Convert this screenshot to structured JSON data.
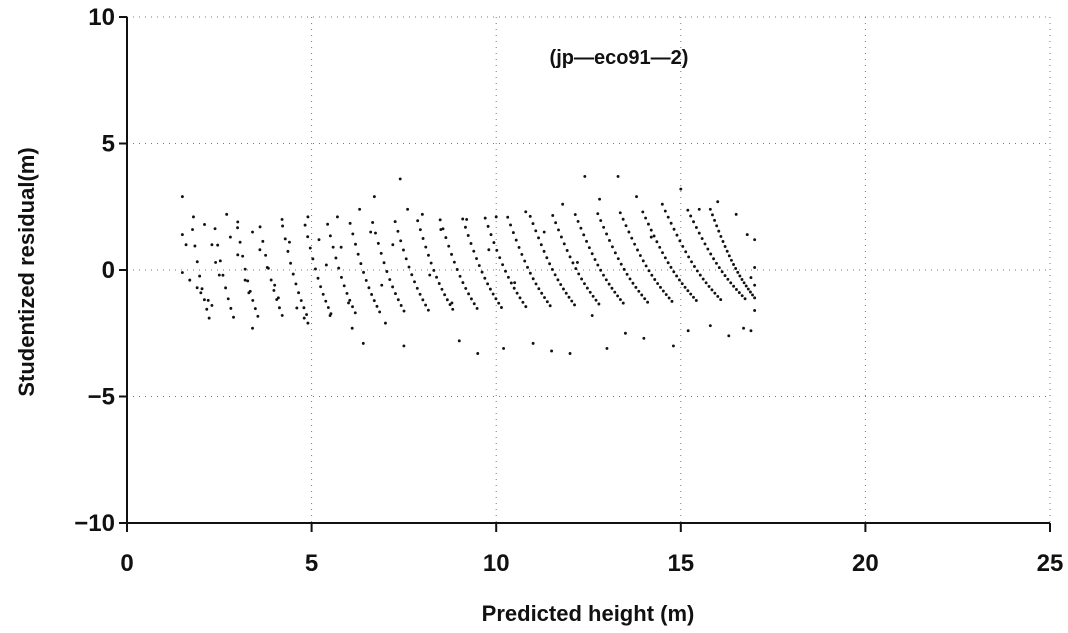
{
  "chart_data": {
    "type": "scatter",
    "title": "(jp—eco91—2)",
    "xlabel": "Predicted height (m)",
    "ylabel": "Studentized residual(m)",
    "xlim": [
      0,
      25
    ],
    "ylim": [
      -10,
      10
    ],
    "xticks": [
      0,
      5,
      10,
      15,
      20,
      25
    ],
    "yticks": [
      -10,
      -5,
      0,
      5,
      10
    ],
    "xtick_labels": [
      "0",
      "5",
      "10",
      "15",
      "20",
      "25"
    ],
    "ytick_labels": [
      "−10",
      "−5",
      "0",
      "5",
      "10"
    ],
    "grid": true,
    "grid_style": "dotted",
    "marker_color": "#111111",
    "points": [
      [
        1.5,
        2.9
      ],
      [
        1.5,
        1.4
      ],
      [
        1.6,
        1.0
      ],
      [
        1.5,
        -0.1
      ],
      [
        1.7,
        -0.4
      ],
      [
        1.9,
        -0.7
      ],
      [
        2.0,
        -0.9
      ],
      [
        2.2,
        -1.2
      ],
      [
        2.3,
        -1.4
      ],
      [
        1.8,
        2.1
      ],
      [
        2.1,
        1.8
      ],
      [
        2.3,
        1.0
      ],
      [
        2.4,
        0.3
      ],
      [
        2.5,
        -0.2
      ],
      [
        2.7,
        2.2
      ],
      [
        2.8,
        1.3
      ],
      [
        3.0,
        0.6
      ],
      [
        3.2,
        -0.4
      ],
      [
        3.3,
        -0.9
      ],
      [
        3.4,
        -2.3
      ],
      [
        3.0,
        1.9
      ],
      [
        3.4,
        1.5
      ],
      [
        3.6,
        0.8
      ],
      [
        3.8,
        0.1
      ],
      [
        4.0,
        -0.6
      ],
      [
        4.1,
        -1.1
      ],
      [
        4.2,
        2.0
      ],
      [
        4.4,
        1.1
      ],
      [
        4.6,
        -1.5
      ],
      [
        4.8,
        -1.9
      ],
      [
        4.9,
        -2.1
      ],
      [
        4.9,
        2.1
      ],
      [
        5.2,
        1.2
      ],
      [
        5.4,
        0.2
      ],
      [
        5.5,
        -1.8
      ],
      [
        5.7,
        2.1
      ],
      [
        5.8,
        0.9
      ],
      [
        6.0,
        -1.3
      ],
      [
        6.1,
        -2.3
      ],
      [
        6.3,
        2.4
      ],
      [
        6.4,
        -2.9
      ],
      [
        6.6,
        1.5
      ],
      [
        6.7,
        2.9
      ],
      [
        6.9,
        -0.6
      ],
      [
        7.0,
        -2.1
      ],
      [
        7.2,
        1.0
      ],
      [
        7.4,
        3.6
      ],
      [
        7.5,
        -3.0
      ],
      [
        7.6,
        2.4
      ],
      [
        8.0,
        2.2
      ],
      [
        8.2,
        -0.2
      ],
      [
        8.5,
        1.6
      ],
      [
        8.8,
        -1.3
      ],
      [
        9.0,
        -2.8
      ],
      [
        9.2,
        2.0
      ],
      [
        9.5,
        -3.3
      ],
      [
        9.8,
        0.8
      ],
      [
        10.0,
        2.1
      ],
      [
        10.2,
        -3.1
      ],
      [
        10.5,
        -0.5
      ],
      [
        10.8,
        2.3
      ],
      [
        11.0,
        -2.9
      ],
      [
        11.3,
        1.5
      ],
      [
        11.5,
        -3.2
      ],
      [
        11.8,
        2.6
      ],
      [
        12.0,
        -3.3
      ],
      [
        12.2,
        0.3
      ],
      [
        12.4,
        3.7
      ],
      [
        12.6,
        -1.8
      ],
      [
        12.8,
        2.8
      ],
      [
        13.0,
        -3.1
      ],
      [
        13.3,
        3.7
      ],
      [
        13.5,
        -2.5
      ],
      [
        13.8,
        2.9
      ],
      [
        14.0,
        -2.7
      ],
      [
        14.2,
        1.3
      ],
      [
        14.5,
        2.6
      ],
      [
        14.8,
        -3.0
      ],
      [
        15.0,
        3.2
      ],
      [
        15.2,
        -2.4
      ],
      [
        15.5,
        2.4
      ],
      [
        15.8,
        -2.2
      ],
      [
        16.0,
        2.7
      ],
      [
        16.3,
        -2.6
      ],
      [
        16.5,
        2.2
      ],
      [
        16.7,
        -2.3
      ],
      [
        16.8,
        1.4
      ],
      [
        16.9,
        -0.3
      ],
      [
        17.0,
        1.2
      ],
      [
        17.0,
        0.1
      ],
      [
        17.0,
        -0.6
      ],
      [
        17.0,
        -1.6
      ],
      [
        16.9,
        -2.4
      ]
    ],
    "band_count": 24,
    "band_width_min": 0.45,
    "band_width_max": 1.6,
    "band_y_start": 2.0,
    "band_y_end": -1.5,
    "band_curve": 0.35
  }
}
